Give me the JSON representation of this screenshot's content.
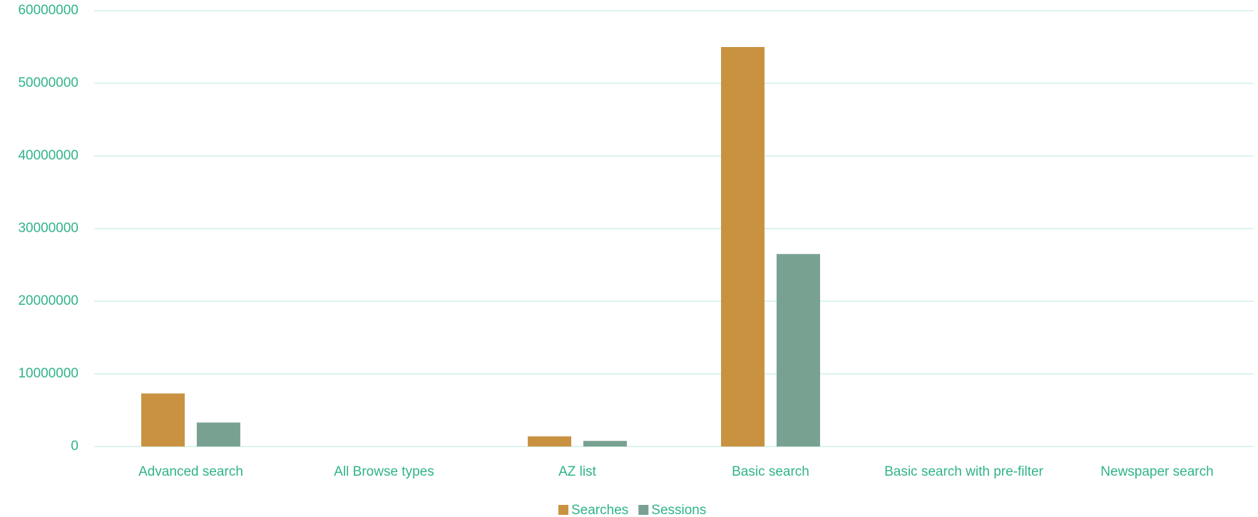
{
  "chart_data": {
    "type": "bar",
    "categories": [
      "Advanced search",
      "All Browse types",
      "AZ list",
      "Basic search",
      "Basic search with pre-filter",
      "Newspaper search"
    ],
    "series": [
      {
        "name": "Searches",
        "color": "#c89241",
        "values": [
          7300000,
          0,
          1400000,
          55000000,
          0,
          0
        ]
      },
      {
        "name": "Sessions",
        "color": "#78a191",
        "values": [
          3300000,
          0,
          770000,
          26500000,
          0,
          0
        ]
      }
    ],
    "ylim": [
      0,
      60000000
    ],
    "yticks": [
      0,
      10000000,
      20000000,
      30000000,
      40000000,
      50000000,
      60000000
    ],
    "grid": true,
    "legend": "bottom"
  }
}
